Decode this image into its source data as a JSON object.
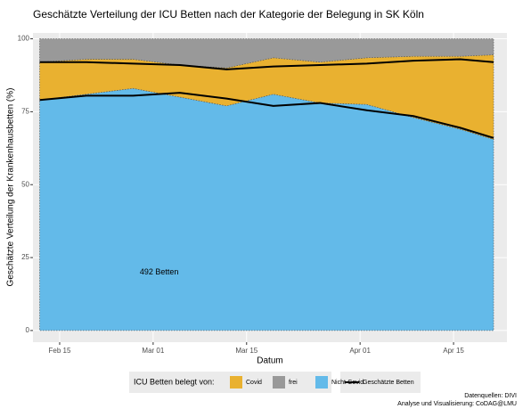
{
  "chart_data": {
    "type": "stacked-area",
    "title": "Geschätzte Verteilung der ICU Betten nach der Kategorie der Belegung in SK Köln",
    "x_label": "Datum",
    "y_label": "Geschätzte Verteilung der Krankenhausbetten (%)",
    "x": [
      43,
      50,
      57,
      64,
      71,
      78,
      85,
      92,
      99,
      106,
      111
    ],
    "series": [
      {
        "name": "Nicht-Covid",
        "color": "#63bae9",
        "values": [
          79,
          81,
          83,
          80,
          77,
          81,
          78,
          77.5,
          73,
          69,
          65.5
        ]
      },
      {
        "name": "Covid",
        "color": "#e9b130",
        "values": [
          13,
          12,
          10,
          11,
          13,
          12.5,
          14,
          16,
          21,
          25,
          29
        ]
      },
      {
        "name": "frei",
        "color": "#999999",
        "values": [
          8,
          7,
          7,
          9,
          10,
          6.5,
          8,
          6.5,
          6,
          6,
          5.5
        ]
      }
    ],
    "line": {
      "name": "Geschätzte Betten",
      "color": "#000000",
      "lower": [
        79,
        80.5,
        80.5,
        81.5,
        79.5,
        77,
        78,
        75.5,
        73.5,
        69.5,
        66
      ],
      "upper": [
        92,
        92,
        91.5,
        91,
        89.5,
        90.5,
        91,
        91.5,
        92.5,
        93,
        92
      ]
    },
    "legend_title": "ICU Betten belegt von:",
    "annotation": {
      "text": "492 Betten",
      "x": 58,
      "y": 20
    },
    "xlim": [
      42,
      113
    ],
    "xticks": [
      {
        "value": 46,
        "label": "Feb 15"
      },
      {
        "value": 60,
        "label": "Mar 01"
      },
      {
        "value": 74,
        "label": "Mar 15"
      },
      {
        "value": 91,
        "label": "Apr 01"
      },
      {
        "value": 105,
        "label": "Apr 15"
      }
    ],
    "ylim": [
      -4,
      102
    ],
    "yticks": [
      0,
      25,
      50,
      75,
      100
    ],
    "grid": true,
    "caption": [
      "Datenquellen: DIVI",
      "Analyse und Visualisierung: CoDAG@LMU"
    ]
  }
}
